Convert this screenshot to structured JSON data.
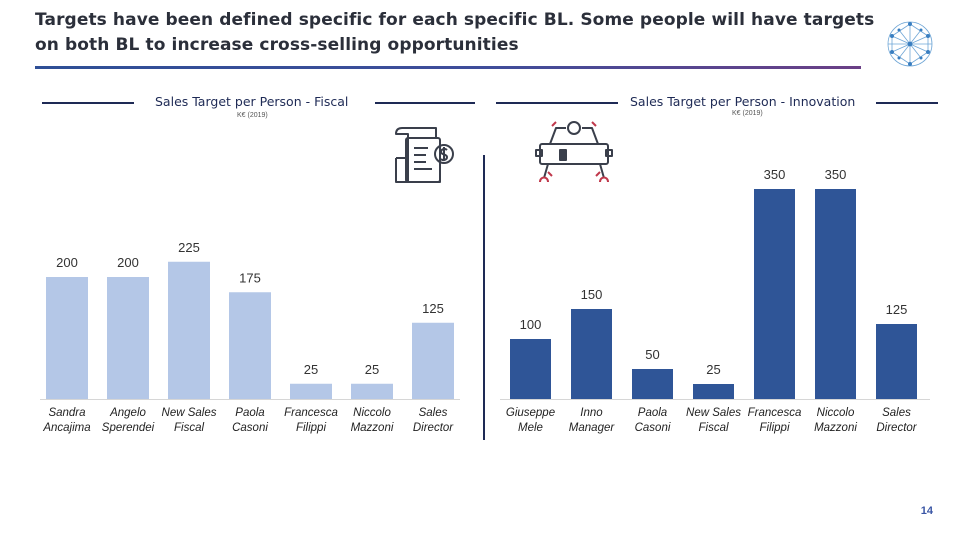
{
  "slide": {
    "title": "Targets have been defined specific for each specific BL. Some people will have targets on both BL to increase cross-selling opportunities",
    "page_number": "14",
    "colors": {
      "fiscal_bar": "#b4c7e7",
      "innovation_bar": "#2f5597",
      "heading": "#1e2a55"
    }
  },
  "icons": {
    "fiscal": "invoice-dollar-icon",
    "innovation": "robot-icon",
    "logo": "network-globe-icon"
  },
  "chart_data": [
    {
      "type": "bar",
      "title": "Sales Target per Person - Fiscal",
      "subtitle": "K€ (2019)",
      "categories": [
        "Sandra Ancajima",
        "Angelo Sperendei",
        "New Sales Fiscal",
        "Paola Casoni",
        "Francesca Filippi",
        "Niccolo Mazzoni",
        "Sales Director"
      ],
      "category_lines": [
        [
          "Sandra",
          "Ancajima"
        ],
        [
          "Angelo",
          "Sperendei"
        ],
        [
          "New Sales",
          "Fiscal"
        ],
        [
          "Paola",
          "Casoni"
        ],
        [
          "Francesca",
          "Filippi"
        ],
        [
          "Niccolo",
          "Mazzoni"
        ],
        [
          "Sales",
          "Director"
        ]
      ],
      "values": [
        200,
        200,
        225,
        175,
        25,
        25,
        125
      ],
      "value_labels": [
        "200",
        "200",
        "225",
        "175",
        "25",
        "25",
        "125"
      ],
      "ylim": [
        0,
        320
      ]
    },
    {
      "type": "bar",
      "title": "Sales Target per Person - Innovation",
      "subtitle": "K€ (2019)",
      "categories": [
        "Giuseppe Mele",
        "Inno Manager",
        "Paola Casoni",
        "New Sales Fiscal",
        "Francesca Filippi",
        "Niccolo Mazzoni",
        "Sales Director"
      ],
      "category_lines": [
        [
          "Giuseppe",
          "Mele"
        ],
        [
          "Inno",
          "Manager"
        ],
        [
          "Paola",
          "Casoni"
        ],
        [
          "New Sales",
          "Fiscal"
        ],
        [
          "Francesca",
          "Filippi"
        ],
        [
          "Niccolo",
          "Mazzoni"
        ],
        [
          "Sales",
          "Director"
        ]
      ],
      "values": [
        100,
        150,
        50,
        25,
        350,
        350,
        125
      ],
      "value_labels": [
        "100",
        "150",
        "50",
        "25",
        "350",
        "350",
        "125"
      ],
      "ylim": [
        0,
        400
      ]
    }
  ]
}
